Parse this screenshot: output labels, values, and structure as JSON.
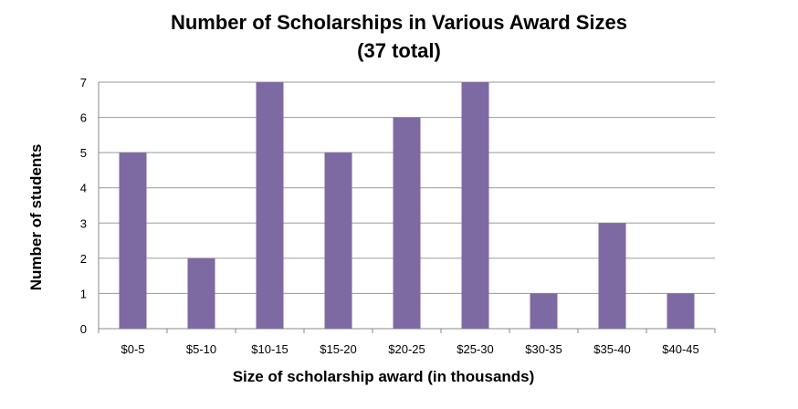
{
  "chart_data": {
    "type": "bar",
    "title": "Number of Scholarships in Various Award Sizes",
    "subtitle": "(37 total)",
    "xlabel": "Size of scholarship award (in thousands)",
    "ylabel": "Number of students",
    "categories": [
      "$0-5",
      "$5-10",
      "$10-15",
      "$15-20",
      "$20-25",
      "$25-30",
      "$30-35",
      "$35-40",
      "$40-45"
    ],
    "values": [
      5,
      2,
      7,
      5,
      6,
      7,
      1,
      3,
      1
    ],
    "ylim": [
      0,
      7
    ],
    "yticks": [
      "0",
      "1",
      "2",
      "3",
      "4",
      "5",
      "6",
      "7"
    ],
    "grid": true,
    "legend": false,
    "colors": {
      "bar": "#7e6aa2",
      "grid": "#9a9a9a"
    }
  }
}
